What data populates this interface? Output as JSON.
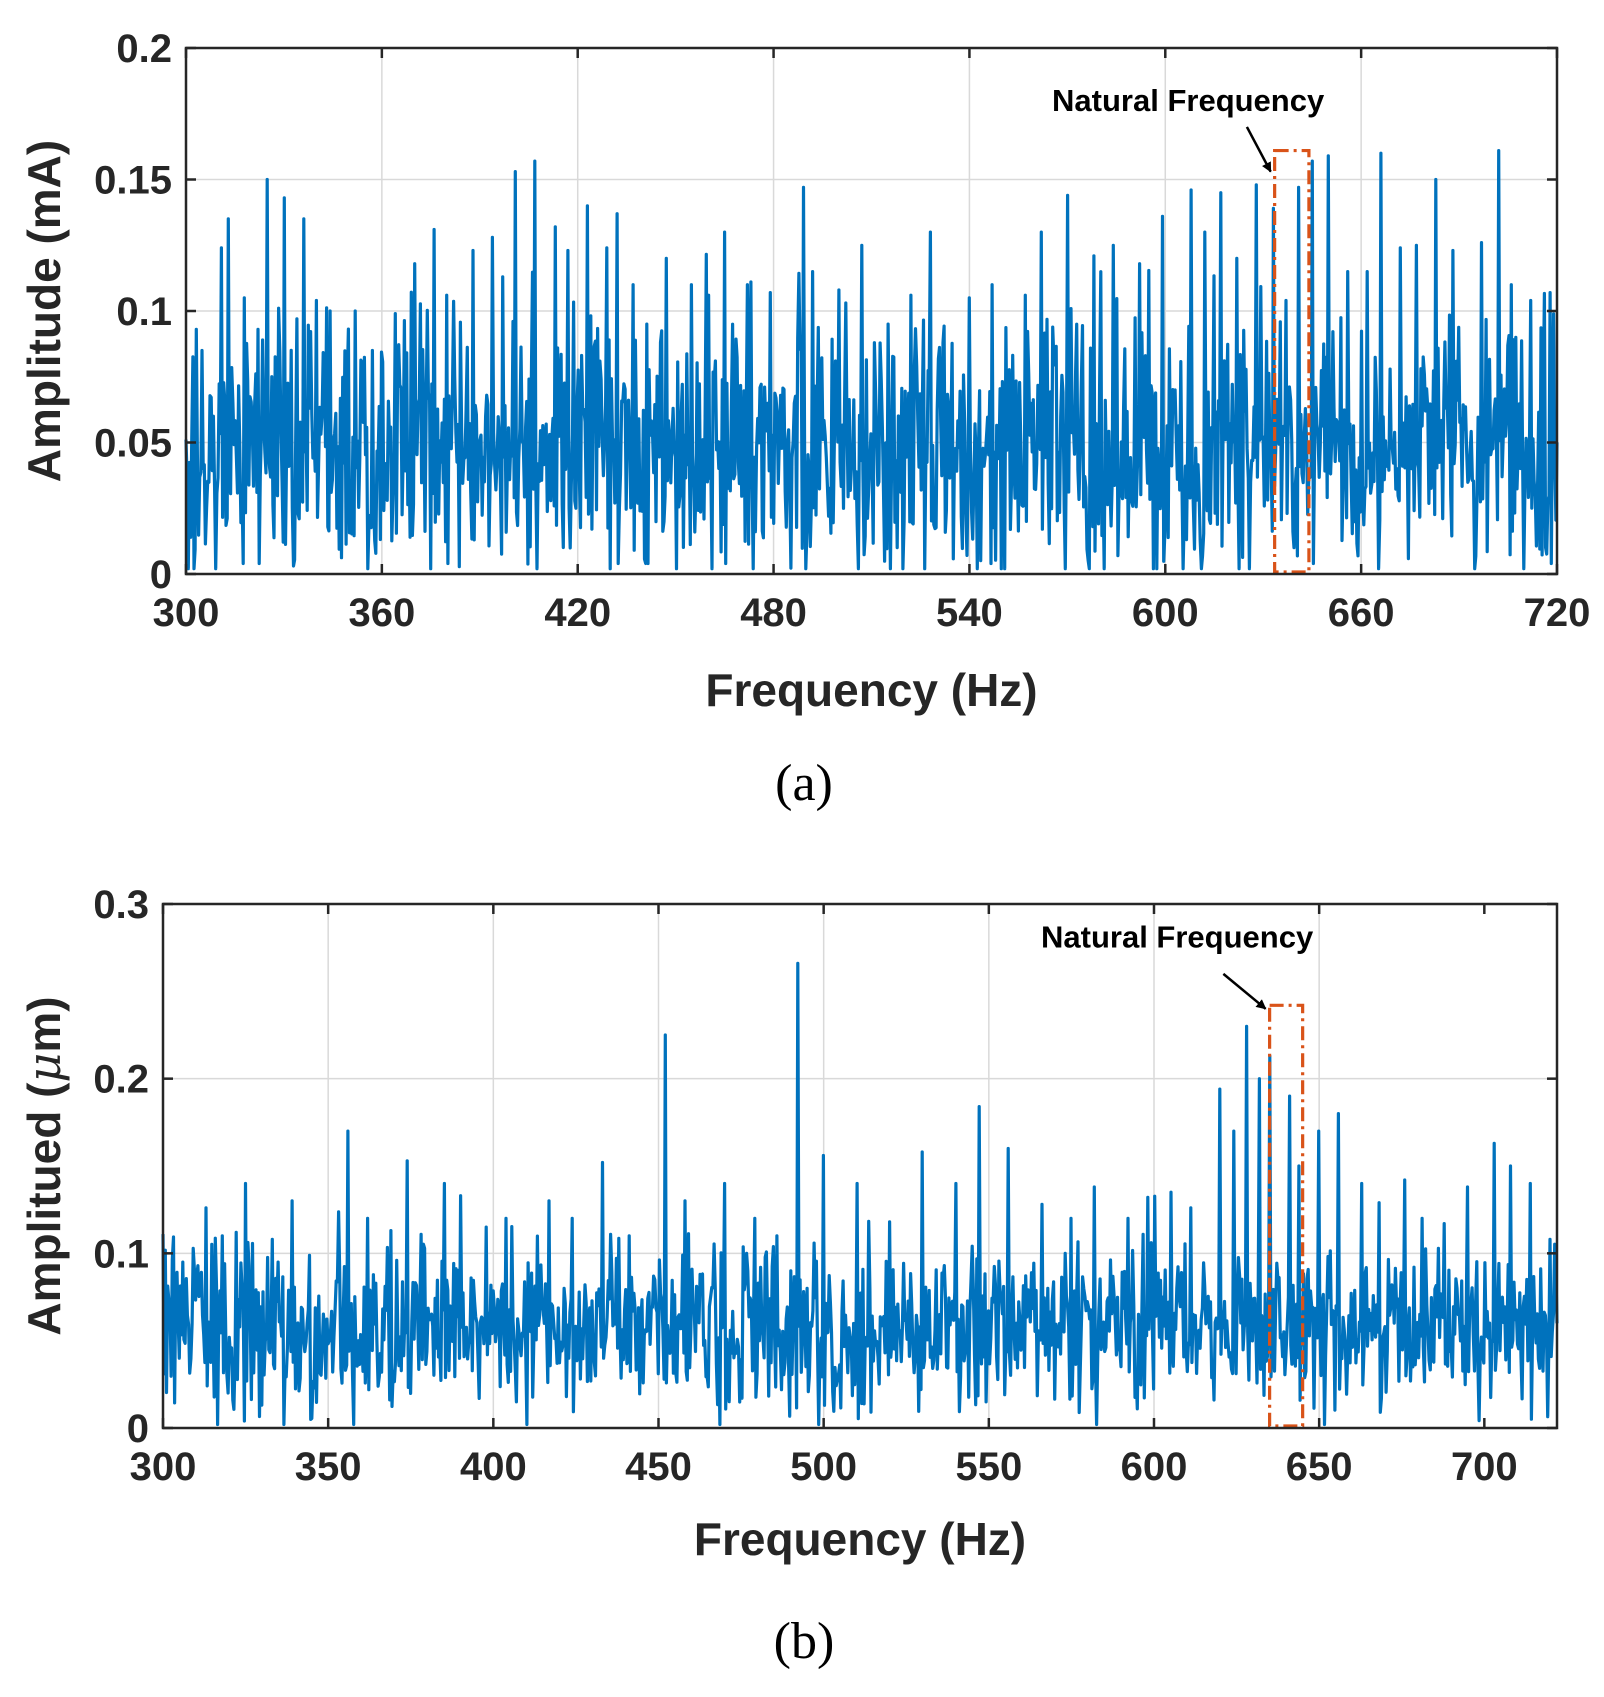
{
  "chart_data": [
    {
      "id": "a",
      "type": "line",
      "panel_label": "(a)",
      "xlabel": "Frequency (Hz)",
      "ylabel": "Amplitude (mA)",
      "xlim": [
        300,
        720
      ],
      "ylim": [
        0,
        0.2
      ],
      "xticks": [
        300,
        360,
        420,
        480,
        540,
        600,
        660,
        720
      ],
      "yticks": [
        0,
        0.05,
        0.1,
        0.15,
        0.2
      ],
      "xtick_labels": [
        "300",
        "360",
        "420",
        "480",
        "540",
        "600",
        "660",
        "720"
      ],
      "ytick_labels": [
        "0",
        "0.05",
        "0.1",
        "0.15",
        "0.2"
      ],
      "grid": true,
      "series": [
        {
          "name": "spectrum",
          "color": "#0072BD",
          "noise": {
            "n_points": 1200,
            "seed": 17,
            "base": 0.05,
            "spread": 0.024,
            "min": 0.0
          },
          "peaks": [
            [
              303,
              0.093
            ],
            [
              305,
              0.085
            ],
            [
              311,
              0.124
            ],
            [
              313,
              0.135
            ],
            [
              318,
              0.105
            ],
            [
              322,
              0.093
            ],
            [
              325,
              0.15
            ],
            [
              330,
              0.143
            ],
            [
              334,
              0.097
            ],
            [
              336,
              0.135
            ],
            [
              340,
              0.104
            ],
            [
              344,
              0.1
            ],
            [
              352,
              0.1
            ],
            [
              357,
              0.085
            ],
            [
              364,
              0.099
            ],
            [
              370,
              0.118
            ],
            [
              376,
              0.131
            ],
            [
              380,
              0.106
            ],
            [
              388,
              0.123
            ],
            [
              394,
              0.128
            ],
            [
              397,
              0.113
            ],
            [
              401,
              0.153
            ],
            [
              407,
              0.157
            ],
            [
              413,
              0.132
            ],
            [
              417,
              0.123
            ],
            [
              423,
              0.14
            ],
            [
              429,
              0.124
            ],
            [
              432,
              0.137
            ],
            [
              437,
              0.11
            ],
            [
              441,
              0.095
            ],
            [
              447,
              0.12
            ],
            [
              455,
              0.11
            ],
            [
              460,
              0.106
            ],
            [
              465,
              0.13
            ],
            [
              472,
              0.11
            ],
            [
              479,
              0.107
            ],
            [
              489,
              0.147
            ],
            [
              492,
              0.115
            ],
            [
              500,
              0.108
            ],
            [
              507,
              0.125
            ],
            [
              515,
              0.095
            ],
            [
              522,
              0.106
            ],
            [
              528,
              0.13
            ],
            [
              540,
              0.105
            ],
            [
              547,
              0.11
            ],
            [
              557,
              0.106
            ],
            [
              562,
              0.13
            ],
            [
              570,
              0.144
            ],
            [
              578,
              0.121
            ],
            [
              584,
              0.125
            ],
            [
              592,
              0.118
            ],
            [
              599,
              0.136
            ],
            [
              608,
              0.146
            ],
            [
              612,
              0.13
            ],
            [
              617,
              0.145
            ],
            [
              622,
              0.12
            ],
            [
              628,
              0.148
            ],
            [
              633,
              0.139
            ],
            [
              637,
              0.104
            ],
            [
              641,
              0.147
            ],
            [
              645,
              0.157
            ],
            [
              650,
              0.159
            ],
            [
              656,
              0.115
            ],
            [
              662,
              0.115
            ],
            [
              666,
              0.16
            ],
            [
              672,
              0.124
            ],
            [
              677,
              0.125
            ],
            [
              683,
              0.15
            ],
            [
              688,
              0.123
            ],
            [
              697,
              0.126
            ],
            [
              702,
              0.161
            ],
            [
              706,
              0.11
            ],
            [
              712,
              0.104
            ],
            [
              718,
              0.107
            ]
          ]
        }
      ],
      "annotation": {
        "text": "Natural Frequency",
        "box_x": [
          633.5,
          644
        ],
        "box_y": [
          0,
          0.161
        ],
        "arrow_to": [
          633.5,
          0.153
        ],
        "arrow_from": [
          625,
          0.17
        ],
        "text_at": [
          607,
          0.176
        ],
        "color": "#D95319"
      }
    },
    {
      "id": "b",
      "type": "line",
      "panel_label": "(b)",
      "xlabel": "Frequency (Hz)",
      "ylabel_prefix": "Amplitued (",
      "ylabel_symbol": "μ",
      "ylabel_suffix": "m)",
      "xlim": [
        300,
        722
      ],
      "ylim": [
        0,
        0.3
      ],
      "xticks": [
        300,
        350,
        400,
        450,
        500,
        550,
        600,
        650,
        700
      ],
      "yticks": [
        0,
        0.1,
        0.2,
        0.3
      ],
      "xtick_labels": [
        "300",
        "350",
        "400",
        "450",
        "500",
        "550",
        "600",
        "650",
        "700"
      ],
      "ytick_labels": [
        "0",
        "0.1",
        "0.2",
        "0.3"
      ],
      "grid": true,
      "series": [
        {
          "name": "spectrum",
          "color": "#0072BD",
          "noise": {
            "n_points": 1200,
            "seed": 29,
            "base": 0.058,
            "spread": 0.022,
            "min": 0.0
          },
          "peaks": [
            [
              300,
              0.111
            ],
            [
              306,
              0.095
            ],
            [
              313,
              0.126
            ],
            [
              318,
              0.11
            ],
            [
              322,
              0.112
            ],
            [
              325,
              0.14
            ],
            [
              333,
              0.108
            ],
            [
              339,
              0.13
            ],
            [
              356,
              0.17
            ],
            [
              362,
              0.12
            ],
            [
              369,
              0.113
            ],
            [
              374,
              0.153
            ],
            [
              385,
              0.14
            ],
            [
              390,
              0.133
            ],
            [
              398,
              0.115
            ],
            [
              404,
              0.12
            ],
            [
              417,
              0.13
            ],
            [
              424,
              0.12
            ],
            [
              433,
              0.152
            ],
            [
              441,
              0.11
            ],
            [
              452,
              0.225
            ],
            [
              458,
              0.13
            ],
            [
              470,
              0.14
            ],
            [
              479,
              0.12
            ],
            [
              486,
              0.11
            ],
            [
              492,
              0.266
            ],
            [
              500,
              0.156
            ],
            [
              510,
              0.14
            ],
            [
              520,
              0.118
            ],
            [
              530,
              0.158
            ],
            [
              540,
              0.14
            ],
            [
              547,
              0.184
            ],
            [
              556,
              0.16
            ],
            [
              566,
              0.128
            ],
            [
              575,
              0.12
            ],
            [
              582,
              0.138
            ],
            [
              592,
              0.12
            ],
            [
              598,
              0.132
            ],
            [
              605,
              0.135
            ],
            [
              611,
              0.126
            ],
            [
              620,
              0.194
            ],
            [
              624,
              0.17
            ],
            [
              628,
              0.23
            ],
            [
              632,
              0.2
            ],
            [
              635,
              0.213
            ],
            [
              641,
              0.19
            ],
            [
              644,
              0.15
            ],
            [
              650,
              0.17
            ],
            [
              656,
              0.18
            ],
            [
              663,
              0.14
            ],
            [
              668,
              0.129
            ],
            [
              676,
              0.142
            ],
            [
              681,
              0.12
            ],
            [
              688,
              0.117
            ],
            [
              695,
              0.138
            ],
            [
              703,
              0.163
            ],
            [
              708,
              0.15
            ],
            [
              714,
              0.14
            ],
            [
              720,
              0.108
            ]
          ]
        }
      ],
      "annotation": {
        "text": "Natural Frequency",
        "box_x": [
          635,
          645
        ],
        "box_y": [
          0,
          0.242
        ],
        "arrow_to": [
          635,
          0.24
        ],
        "arrow_from": [
          621,
          0.26
        ],
        "text_at": [
          607,
          0.275
        ],
        "color": "#D95319"
      }
    }
  ]
}
